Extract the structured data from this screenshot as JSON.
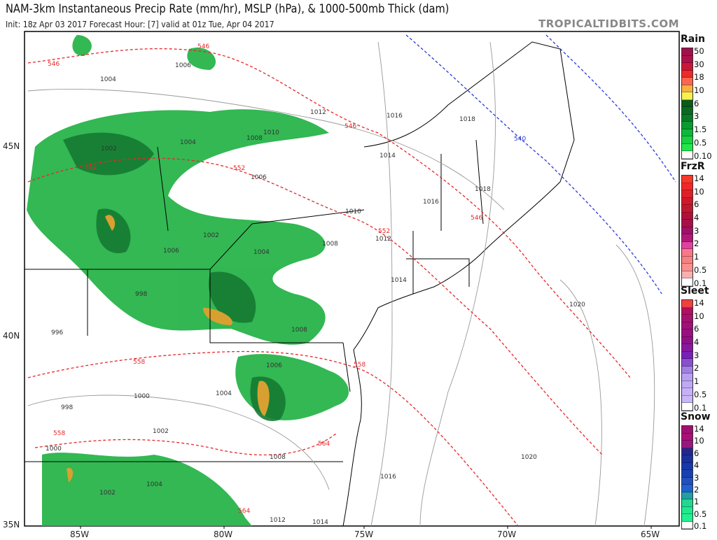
{
  "header": {
    "title": "NAM-3km Instantaneous Precip Rate (mm/hr), MSLP (hPa), & 1000-500mb Thick (dam)",
    "subtitle": "Init: 18z Apr 03 2017   Forecast Hour: [7]   valid at 01z Tue, Apr 04 2017",
    "brand": "TROPICALTIDBITS.COM"
  },
  "axes": {
    "lon": [
      "85W",
      "80W",
      "75W",
      "70W",
      "65W"
    ],
    "lat": [
      "45N",
      "40N",
      "35N"
    ]
  },
  "isobars": [
    "1006",
    "1004",
    "1012",
    "1016",
    "1018",
    "1010",
    "1008",
    "1004",
    "1002",
    "1014",
    "1006",
    "1018",
    "1016",
    "1010",
    "1012",
    "1008",
    "1002",
    "1004",
    "1006",
    "998",
    "1014",
    "996",
    "1008",
    "1006",
    "1004",
    "1000",
    "998",
    "1002",
    "1000",
    "1008",
    "1016",
    "1020",
    "1020",
    "1002",
    "1004",
    "1012",
    "1014"
  ],
  "thickness": {
    "red": [
      "546",
      "546",
      "546",
      "552",
      "552",
      "552",
      "546",
      "558",
      "558",
      "558",
      "564",
      "564"
    ],
    "blue": [
      "540"
    ]
  },
  "colors": {
    "thick_red": "#e8262a",
    "thick_blue": "#2a3ad8",
    "rain_light": "#22b84a",
    "rain_dark": "#157a32",
    "rain_heavy": "#d8a030"
  },
  "legends": [
    {
      "name": "Rain",
      "labels": [
        "50",
        "30",
        "18",
        "10",
        "6",
        "3",
        "1.5",
        "0.5",
        "0.10"
      ],
      "colors": [
        "#a0104a",
        "#b01048",
        "#c81838",
        "#f02828",
        "#f86850",
        "#f8b040",
        "#f8f050",
        "#0a5a1a",
        "#0a6a20",
        "#0a7a28",
        "#0a9a30",
        "#10b838",
        "#18d040",
        "#20e848",
        "#ffffff"
      ]
    },
    {
      "name": "FrzR",
      "labels": [
        "14",
        "10",
        "6",
        "4",
        "3",
        "2",
        "1",
        "0.5",
        "0.1"
      ],
      "colors": [
        "#f83828",
        "#f02828",
        "#e02028",
        "#d01828",
        "#c01830",
        "#b01038",
        "#a81048",
        "#a01068",
        "#b01878",
        "#e040a0",
        "#f87888",
        "#f88080",
        "#f89090",
        "#f8b0b0",
        "#ffffff"
      ]
    },
    {
      "name": "Sleet",
      "labels": [
        "14",
        "10",
        "6",
        "4",
        "3",
        "2",
        "1",
        "0.5",
        "0.1"
      ],
      "colors": [
        "#f04040",
        "#b01060",
        "#a81070",
        "#a01078",
        "#981080",
        "#901088",
        "#8818a0",
        "#7820b8",
        "#8850d0",
        "#a080e0",
        "#b8a0f0",
        "#c0a8f8",
        "#c8b0f8",
        "#c8b8f8",
        "#ffffff"
      ]
    },
    {
      "name": "Snow",
      "labels": [
        "14",
        "10",
        "6",
        "4",
        "3",
        "2",
        "1",
        "0.5",
        "0.1"
      ],
      "colors": [
        "#a01070",
        "#a81078",
        "#981880",
        "#202890",
        "#1830a0",
        "#1838a8",
        "#1840b0",
        "#2050c0",
        "#2060d0",
        "#20a0a0",
        "#20d890",
        "#20e890",
        "#20f090",
        "#ffffff"
      ]
    }
  ]
}
